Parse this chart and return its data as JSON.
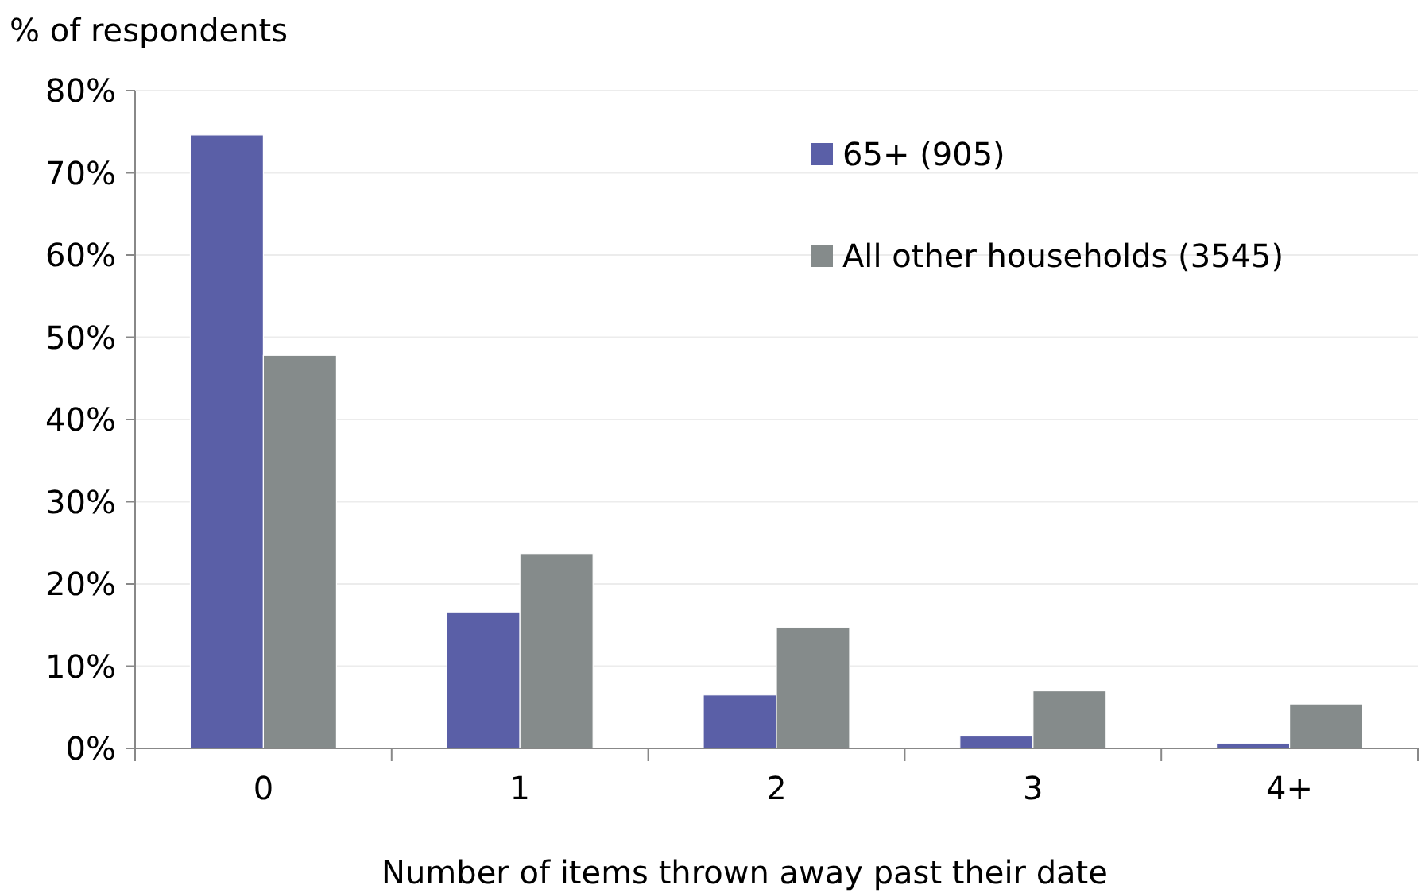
{
  "chart_data": {
    "type": "bar",
    "ylabel": "% of respondents",
    "xlabel": "Number of items thrown away past their date",
    "categories": [
      "0",
      "1",
      "2",
      "3",
      "4+"
    ],
    "series": [
      {
        "name": "65+ (905)",
        "color": "#5a5fa7",
        "values": [
          74.6,
          16.6,
          6.5,
          1.5,
          0.6
        ]
      },
      {
        "name": "All other households (3545)",
        "color": "#858b8b",
        "values": [
          47.8,
          23.7,
          14.7,
          7.0,
          5.4
        ]
      }
    ],
    "ylim": [
      0,
      80
    ],
    "yticks": [
      {
        "value": 0,
        "label": "0%"
      },
      {
        "value": 10,
        "label": "10%"
      },
      {
        "value": 20,
        "label": "20%"
      },
      {
        "value": 30,
        "label": "30%"
      },
      {
        "value": 40,
        "label": "40%"
      },
      {
        "value": 50,
        "label": "50%"
      },
      {
        "value": 60,
        "label": "60%"
      },
      {
        "value": 70,
        "label": "70%"
      },
      {
        "value": 80,
        "label": "80%"
      }
    ],
    "grid": "y",
    "legend": "top right"
  }
}
